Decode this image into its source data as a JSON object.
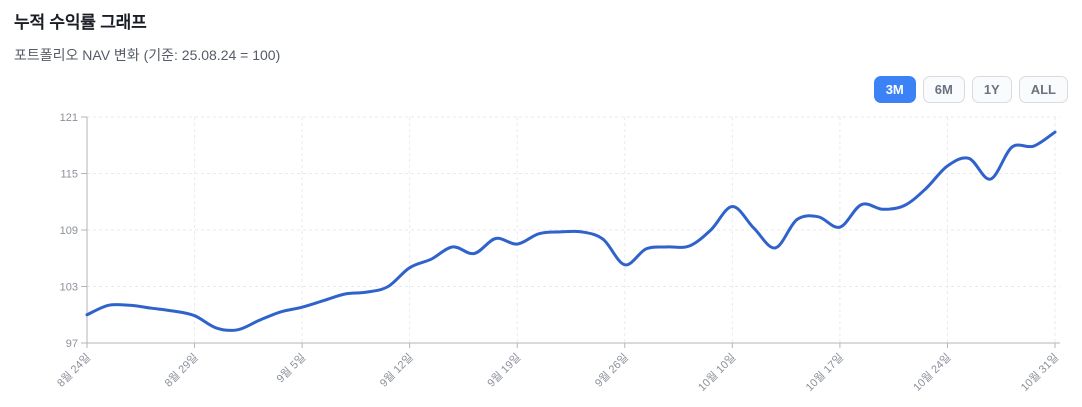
{
  "page": {
    "title": "누적 수익률 그래프",
    "subtitle": "포트폴리오 NAV 변화 (기준: 25.08.24 = 100)"
  },
  "range_buttons": [
    {
      "label": "3M",
      "active": true
    },
    {
      "label": "6M",
      "active": false
    },
    {
      "label": "1Y",
      "active": false
    },
    {
      "label": "ALL",
      "active": false
    }
  ],
  "colors": {
    "line": "#2f63cb",
    "button_active": "#3b82f6",
    "axis": "#b0b5bd",
    "grid": "#e8eaee",
    "tick_label": "#8b909a"
  },
  "chart_data": {
    "type": "line",
    "title": "누적 수익률 그래프",
    "subtitle": "포트폴리오 NAV 변화 (기준: 25.08.24 = 100)",
    "series_name": "포트폴리오 NAV",
    "baseline": "25.08.24 = 100",
    "legend": "none",
    "grid": "dashed",
    "ylim": [
      97,
      121
    ],
    "y_ticks": [
      97,
      103,
      109,
      115,
      121
    ],
    "x_tick_labels": [
      "8월 24일",
      "8월 29일",
      "9월 5일",
      "9월 12일",
      "9월 19일",
      "9월 26일",
      "10월 10일",
      "10월 17일",
      "10월 24일",
      "10월 31일"
    ],
    "x_tick_indices": [
      0,
      5,
      10,
      15,
      20,
      25,
      30,
      35,
      40,
      45
    ],
    "values": [
      100.0,
      101.0,
      101.0,
      100.7,
      100.4,
      99.9,
      98.6,
      98.4,
      99.4,
      100.3,
      100.8,
      101.5,
      102.2,
      102.4,
      103.0,
      105.0,
      105.9,
      107.2,
      106.5,
      108.1,
      107.5,
      108.6,
      108.8,
      108.8,
      108.0,
      105.3,
      107.0,
      107.2,
      107.3,
      109.0,
      111.5,
      109.2,
      107.1,
      110.1,
      110.4,
      109.3,
      111.7,
      111.2,
      111.6,
      113.4,
      115.8,
      116.6,
      114.4,
      117.8,
      117.9,
      119.4
    ]
  }
}
